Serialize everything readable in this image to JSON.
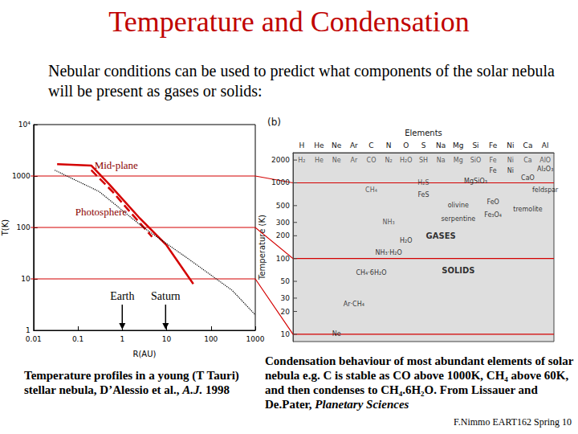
{
  "title": "Temperature and Condensation",
  "intro": "Nebular conditions can be used to predict what components of the solar nebula will be present as gases or solids:",
  "chart_data": [
    {
      "type": "line",
      "x_label": "R(AU)",
      "y_label": "T(K)",
      "log": true,
      "xlim": [
        0.01,
        1000
      ],
      "xticks": [
        0.01,
        0.1,
        1,
        10,
        100,
        1000
      ],
      "ylim": [
        1,
        10000
      ],
      "yticks": [
        1,
        10,
        100,
        1000,
        {
          "value": 10000,
          "label": "10⁴"
        }
      ],
      "grid": false,
      "series": [
        {
          "name": "Mid-plane",
          "color": "#d40000",
          "line_style": "solid",
          "x": [
            0.034,
            0.2,
            0.5,
            2.5,
            10,
            40
          ],
          "values": [
            1700,
            1600,
            700,
            150,
            45,
            8
          ]
        },
        {
          "name": "Photosphere",
          "color": "#d40000",
          "line_style": "dashed",
          "x": [
            0.2,
            0.6,
            1.5,
            4.7
          ],
          "values": [
            1300,
            500,
            200,
            66
          ]
        },
        {
          "color": "#000000",
          "line_style": "dotted",
          "x": [
            0.03,
            0.3,
            3,
            30,
            300,
            1000
          ],
          "values": [
            1300,
            500,
            100,
            25,
            6,
            2
          ]
        }
      ],
      "annotations": [
        {
          "text": "Earth",
          "x": 1
        },
        {
          "text": "Saturn",
          "x": 9.5
        }
      ]
    },
    {
      "type": "scatter",
      "panel": "(b)",
      "x_label": "Elements",
      "y_label": "Temperature (K)",
      "log": "y",
      "categories": [
        "H",
        "He",
        "Ne",
        "Ar",
        "C",
        "N",
        "O",
        "S",
        "Na",
        "Mg",
        "Si",
        "Fe",
        "Ni",
        "Ca",
        "Al"
      ],
      "ylim": [
        8,
        2500
      ],
      "yticks": [
        10,
        20,
        30,
        50,
        100,
        200,
        300,
        500,
        1000,
        2000
      ],
      "grid": false,
      "series": [
        {
          "color": "#333333",
          "marker": "none",
          "labels": [
            "H₂",
            "He",
            "Ne",
            "Ar",
            "CO",
            "N₂",
            "H₂O",
            "SH",
            "Na",
            "Mg",
            "SiO",
            "Fe",
            "Ni",
            "Ca",
            "AlO",
            "CH₄",
            "NH₃",
            "H₂S"
          ],
          "x": [
            "H",
            "He",
            "Ne",
            "Ar",
            "C",
            "N",
            "O",
            "S",
            "Na",
            "Mg",
            "Si",
            "Fe",
            "Ni",
            "Ca",
            "Al",
            "C",
            "N",
            "S"
          ],
          "values": [
            2000,
            2000,
            2000,
            2000,
            2000,
            2000,
            2000,
            2000,
            2000,
            2000,
            2000,
            2000,
            2000,
            2000,
            2000,
            800,
            300,
            1000
          ]
        },
        {
          "color": "#000000",
          "marker": "none",
          "labels": [
            "Al₂O₃",
            "CaO",
            "Ni",
            "Fe",
            "MgSiO₃",
            "feldspar",
            "FeS",
            "FeO",
            "olivine",
            "tremolite",
            "Fe₃O₄",
            "serpentine",
            "H₂O",
            "NH₃·H₂O",
            "CH₄·6H₂O",
            "Ar·CH₄",
            "Ne"
          ],
          "x": [
            "Al",
            "Ca",
            "Ni",
            "Fe",
            "Si",
            "Al",
            "S",
            "Fe",
            "Mg",
            "Ca",
            "Fe",
            "Mg",
            "O",
            "N",
            "C",
            "Ar",
            "Ne"
          ],
          "values": [
            1500,
            1150,
            1450,
            1450,
            1050,
            800,
            700,
            550,
            500,
            450,
            380,
            330,
            170,
            120,
            65,
            25,
            10
          ]
        }
      ],
      "regions": {
        "labels": [
          "GASES",
          "SOLIDS"
        ],
        "x": [
          "Na",
          "Mg"
        ],
        "values": [
          200,
          70
        ],
        "color": "#000000"
      }
    }
  ],
  "captions": {
    "left": [
      {
        "text": "Temperature profiles in a young (T Tauri) stellar nebula, D’Alessio et al., "
      },
      {
        "text": "A.J.",
        "italic": true
      },
      {
        "text": " 1998"
      }
    ],
    "right": [
      {
        "text": "Condensation behaviour of most abundant elements of solar nebula e.g. C is stable as CO above 1000K, CH₄ above 60K, and then condenses to CH₄.6H₂O. From Lissauer and De.Pater, "
      },
      {
        "text": "Planetary Sciences",
        "italic": true
      }
    ]
  },
  "footer": "F.Nimmo EART162 Spring 10"
}
